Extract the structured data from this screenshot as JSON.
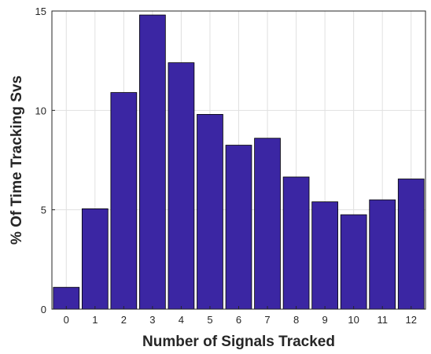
{
  "chart_data": {
    "type": "bar",
    "title": "",
    "xlabel": "Number of Signals Tracked",
    "ylabel": "% Of Time Tracking Svs",
    "categories": [
      "0",
      "1",
      "2",
      "3",
      "4",
      "5",
      "6",
      "7",
      "8",
      "9",
      "10",
      "11",
      "12"
    ],
    "values": [
      1.1,
      5.05,
      10.9,
      14.8,
      12.4,
      9.8,
      8.25,
      8.6,
      6.65,
      5.4,
      4.75,
      5.5,
      6.55
    ],
    "ylim": [
      0,
      15
    ],
    "yticks": [
      0,
      5,
      10,
      15
    ],
    "grid": true,
    "legend": "none",
    "colors": {
      "bar": "#3b26a3",
      "bar_edge": "#000000",
      "grid": "#e0e0e0",
      "axis": "#262626"
    }
  }
}
